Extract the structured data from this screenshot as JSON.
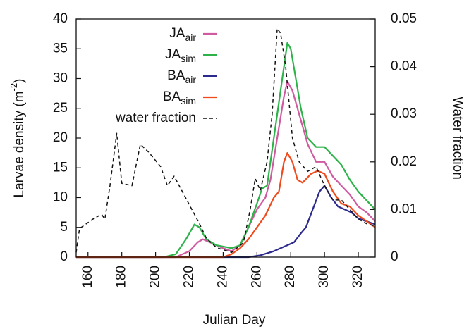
{
  "chart_data": {
    "type": "line",
    "xlabel": "Julian Day",
    "ylabel": "Larvae density (m",
    "ylabel_sup": "-2",
    "ylabel_end": ")",
    "y2label": "Water fraction",
    "xlim": [
      153,
      330
    ],
    "xticks": [
      160,
      180,
      200,
      220,
      240,
      260,
      280,
      300,
      320
    ],
    "ylim": [
      0,
      40
    ],
    "yticks": [
      0,
      5,
      10,
      15,
      20,
      25,
      30,
      35,
      40
    ],
    "y2lim": [
      0,
      0.05
    ],
    "y2ticks": [
      0,
      0.01,
      0.02,
      0.03,
      0.04,
      0.05
    ],
    "legend": "top-right",
    "series": [
      {
        "name": "JA",
        "sub": "air",
        "color": "#d05aa0",
        "style": "solid",
        "x": [
          153,
          212,
          220,
          225,
          228,
          232,
          240,
          245,
          250,
          255,
          260,
          265,
          268,
          272,
          276,
          278,
          281,
          285,
          290,
          295,
          300,
          305,
          310,
          315,
          320,
          325,
          330
        ],
        "values": [
          0,
          0,
          1,
          2.5,
          3,
          2.5,
          1.5,
          1,
          2,
          5,
          8,
          10,
          13,
          20,
          27,
          29.5,
          28,
          24,
          19,
          16,
          16,
          13.5,
          12,
          10.5,
          8.5,
          7.5,
          6
        ]
      },
      {
        "name": "JA",
        "sub": "sim",
        "color": "#2db34a",
        "style": "solid",
        "x": [
          153,
          205,
          212,
          218,
          223,
          226,
          230,
          236,
          245,
          250,
          255,
          260,
          263,
          266,
          270,
          275,
          278,
          280,
          283,
          286,
          290,
          295,
          300,
          305,
          310,
          315,
          320,
          325,
          330
        ],
        "values": [
          0,
          0,
          0.5,
          3,
          5.5,
          5,
          3,
          2,
          1.5,
          2,
          5,
          9,
          11.5,
          12,
          20,
          30,
          36,
          35,
          30,
          25,
          20,
          18.5,
          18.5,
          17,
          15.5,
          13,
          11,
          9.5,
          8
        ]
      },
      {
        "name": "BA",
        "sub": "air",
        "color": "#2c2a8c",
        "style": "solid",
        "x": [
          153,
          255,
          262,
          270,
          278,
          282,
          286,
          289,
          293,
          297,
          300,
          304,
          308,
          312,
          316,
          320,
          325,
          330
        ],
        "values": [
          0,
          0,
          0.3,
          1,
          2,
          2.5,
          4,
          5,
          8,
          11,
          12,
          10,
          8.5,
          8,
          7.5,
          6.5,
          6,
          5.5
        ]
      },
      {
        "name": "BA",
        "sub": "sim",
        "color": "#f04a1c",
        "style": "solid",
        "x": [
          153,
          240,
          245,
          250,
          255,
          260,
          265,
          270,
          273,
          276,
          278,
          281,
          284,
          287,
          292,
          296,
          300,
          305,
          310,
          315,
          320,
          325,
          330
        ],
        "values": [
          0,
          0,
          0.5,
          1.5,
          3,
          5,
          7,
          10,
          11,
          16,
          17.5,
          16,
          13,
          12.5,
          14,
          14.5,
          14,
          11,
          9,
          8.5,
          7,
          6,
          5
        ]
      },
      {
        "name": "water fraction",
        "color": "#111111",
        "style": "dashed",
        "axis": "y2",
        "x": [
          153,
          155,
          163,
          168,
          170,
          173,
          177,
          180,
          186,
          191,
          196,
          203,
          207,
          211,
          214,
          220,
          226,
          230,
          236,
          245,
          252,
          256,
          259,
          262,
          266,
          269,
          272,
          274,
          277,
          281,
          285,
          290,
          295,
          300,
          305,
          310,
          315,
          320,
          325,
          330
        ],
        "values": [
          0.001,
          0.006,
          0.008,
          0.009,
          0.008,
          0.015,
          0.026,
          0.0155,
          0.015,
          0.0237,
          0.022,
          0.019,
          0.015,
          0.017,
          0.015,
          0.011,
          0.007,
          0.004,
          0.002,
          0.001,
          0.003,
          0.01,
          0.0165,
          0.014,
          0.02,
          0.03,
          0.048,
          0.047,
          0.04,
          0.025,
          0.02,
          0.018,
          0.019,
          0.015,
          0.012,
          0.012,
          0.01,
          0.008,
          0.007,
          0.0065
        ]
      }
    ]
  }
}
